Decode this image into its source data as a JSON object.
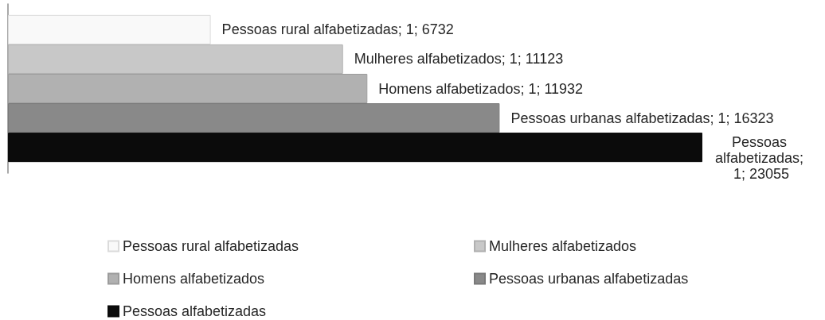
{
  "chart_data": {
    "type": "bar",
    "orientation": "horizontal",
    "categories": [
      null
    ],
    "series": [
      {
        "name": "Pessoas rural alfabetizadas",
        "color": "#f9f9f9",
        "values": [
          6732
        ],
        "value_labels": [
          "Pessoas rural alfabetizadas; 1; 6732"
        ]
      },
      {
        "name": "Mulheres alfabetizados",
        "color": "#c8c8c8",
        "values": [
          11123
        ],
        "value_labels": [
          "Mulheres alfabetizados; 1; 11123"
        ]
      },
      {
        "name": "Homens alfabetizados",
        "color": "#b1b1b1",
        "values": [
          11932
        ],
        "value_labels": [
          "Homens alfabetizados; 1; 11932"
        ]
      },
      {
        "name": "Pessoas urbanas alfabetizadas",
        "color": "#898989",
        "values": [
          16323
        ],
        "value_labels": [
          "Pessoas urbanas alfabetizadas; 1; 16323"
        ]
      },
      {
        "name": "Pessoas alfabetizadas",
        "color": "#0b0b0b",
        "values": [
          23055
        ],
        "value_labels": [
          "Pessoas alfabetizadas; 1; 23055"
        ]
      }
    ],
    "legend": "bottom",
    "tick_labels": false
  }
}
